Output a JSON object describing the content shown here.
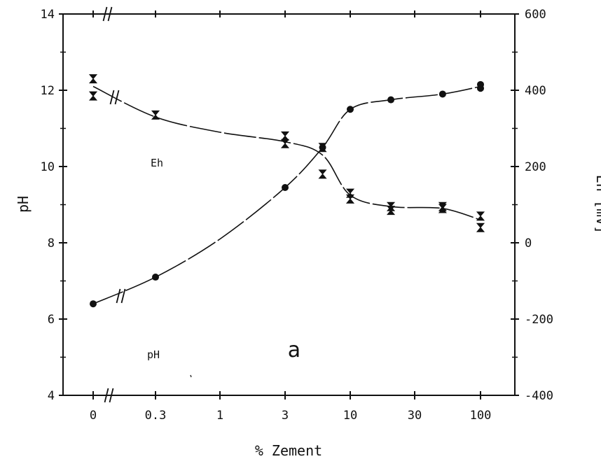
{
  "chart_data": {
    "type": "line",
    "title": "",
    "xlabel": "% Zement",
    "ylabel_left": "pH",
    "ylabel_right": "Eh [mV]",
    "x_categories": [
      "0",
      "0.3",
      "1",
      "3",
      "10",
      "30",
      "100"
    ],
    "ylim_left": [
      4,
      14
    ],
    "yticks_left": [
      "4",
      "6",
      "8",
      "10",
      "12",
      "14"
    ],
    "ylim_right": [
      -400,
      600
    ],
    "yticks_right": [
      "-400",
      "-200",
      "0",
      "200",
      "400",
      "600"
    ],
    "grid": false,
    "legend": "none",
    "annotations": {
      "eh_label": "Eh",
      "ph_label": "pH",
      "panel_label": "a"
    },
    "series": [
      {
        "name": "Eh",
        "axis": "right",
        "marker": "hourglass",
        "points": [
          {
            "x": "0",
            "y": 430
          },
          {
            "x": "0",
            "y": 385
          },
          {
            "x": "0.3",
            "y": 335
          },
          {
            "x": "3",
            "y": 280
          },
          {
            "x": "3",
            "y": 260
          },
          {
            "x": "6",
            "y": 250
          },
          {
            "x": "6",
            "y": 180
          },
          {
            "x": "10",
            "y": 130
          },
          {
            "x": "10",
            "y": 115
          },
          {
            "x": "20",
            "y": 95
          },
          {
            "x": "20",
            "y": 85
          },
          {
            "x": "50",
            "y": 95
          },
          {
            "x": "50",
            "y": 90
          },
          {
            "x": "100",
            "y": 70
          },
          {
            "x": "100",
            "y": 40
          }
        ],
        "curve": [
          {
            "x": "0",
            "y": 410
          },
          {
            "x": "0.3",
            "y": 330
          },
          {
            "x": "1",
            "y": 290
          },
          {
            "x": "3",
            "y": 265
          },
          {
            "x": "6",
            "y": 230
          },
          {
            "x": "10",
            "y": 125
          },
          {
            "x": "20",
            "y": 95
          },
          {
            "x": "50",
            "y": 90
          },
          {
            "x": "100",
            "y": 60
          }
        ]
      },
      {
        "name": "pH",
        "axis": "left",
        "marker": "dot",
        "points": [
          {
            "x": "0",
            "y": 6.4
          },
          {
            "x": "0.3",
            "y": 7.1
          },
          {
            "x": "3",
            "y": 9.45
          },
          {
            "x": "6",
            "y": 10.5
          },
          {
            "x": "10",
            "y": 11.5
          },
          {
            "x": "20",
            "y": 11.75
          },
          {
            "x": "50",
            "y": 11.9
          },
          {
            "x": "100",
            "y": 12.05
          },
          {
            "x": "100",
            "y": 12.15
          }
        ],
        "curve": [
          {
            "x": "0",
            "y": 6.4
          },
          {
            "x": "0.3",
            "y": 7.1
          },
          {
            "x": "1",
            "y": 8.1
          },
          {
            "x": "3",
            "y": 9.45
          },
          {
            "x": "6",
            "y": 10.5
          },
          {
            "x": "10",
            "y": 11.5
          },
          {
            "x": "20",
            "y": 11.75
          },
          {
            "x": "50",
            "y": 11.9
          },
          {
            "x": "100",
            "y": 12.1
          }
        ]
      }
    ]
  }
}
